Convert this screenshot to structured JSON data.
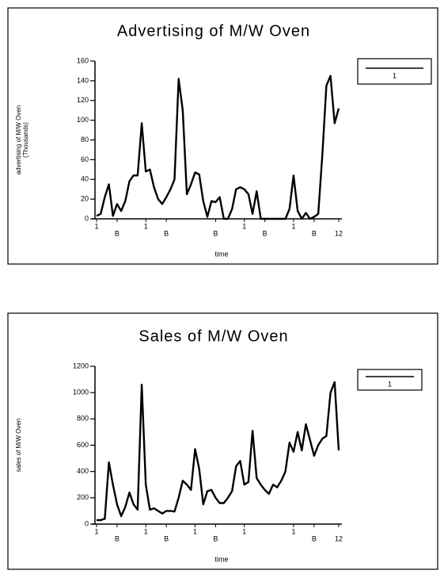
{
  "chart_data": [
    {
      "type": "line",
      "title": "Advertising of M/W Oven",
      "xlabel": "time",
      "ylabel": "advertising of M/W Oven",
      "ylabel2": "(Thousands)",
      "x": [
        1,
        2,
        3,
        4,
        5,
        6,
        7,
        8,
        9,
        10,
        11,
        12,
        13,
        14,
        15,
        16,
        17,
        18,
        19,
        20,
        21,
        22,
        23,
        24,
        25,
        26,
        27,
        28,
        29,
        30,
        31,
        32,
        33,
        34,
        35,
        36,
        37,
        38,
        39,
        40,
        41,
        42,
        43,
        44,
        45,
        46,
        47,
        48,
        49,
        50,
        51,
        52,
        53,
        54,
        55,
        56,
        57,
        58,
        59,
        60
      ],
      "series": [
        {
          "name": "1",
          "color": "#000000",
          "values": [
            3,
            5,
            22,
            35,
            3,
            15,
            8,
            18,
            38,
            44,
            44,
            97,
            48,
            50,
            32,
            20,
            15,
            22,
            30,
            40,
            142,
            110,
            25,
            35,
            47,
            45,
            18,
            2,
            18,
            17,
            22,
            0,
            0,
            10,
            30,
            32,
            30,
            25,
            5,
            28,
            0,
            0,
            0,
            0,
            0,
            0,
            0,
            10,
            44,
            8,
            0,
            6,
            0,
            2,
            5,
            65,
            135,
            145,
            97,
            112
          ]
        }
      ],
      "xlim": [
        1,
        60
      ],
      "ylim": [
        0,
        160
      ],
      "yticks": [
        0,
        20,
        40,
        60,
        80,
        100,
        120,
        140,
        160
      ],
      "xticks": [
        1,
        {
          "value": 6,
          "label": "B"
        },
        {
          "value": 13,
          "label": "1"
        },
        {
          "value": 18,
          "label": "B"
        },
        {
          "value": 30,
          "label": "B"
        },
        {
          "value": 37,
          "label": "1"
        },
        {
          "value": 42,
          "label": "B"
        },
        {
          "value": 49,
          "label": "1"
        },
        {
          "value": 54,
          "label": "B"
        },
        {
          "value": 60,
          "label": "12"
        }
      ],
      "legend": "upper right"
    },
    {
      "type": "line",
      "title": "Sales of M/W Oven",
      "xlabel": "time",
      "ylabel": "sales of M/W Oven",
      "x": [
        1,
        2,
        3,
        4,
        5,
        6,
        7,
        8,
        9,
        10,
        11,
        12,
        13,
        14,
        15,
        16,
        17,
        18,
        19,
        20,
        21,
        22,
        23,
        24,
        25,
        26,
        27,
        28,
        29,
        30,
        31,
        32,
        33,
        34,
        35,
        36,
        37,
        38,
        39,
        40,
        41,
        42,
        43,
        44,
        45,
        46,
        47,
        48,
        49,
        50,
        51,
        52,
        53,
        54,
        55,
        56,
        57,
        58,
        59,
        60
      ],
      "series": [
        {
          "name": "1",
          "color": "#000000",
          "values": [
            30,
            30,
            40,
            470,
            300,
            150,
            60,
            130,
            240,
            150,
            110,
            1060,
            300,
            110,
            120,
            100,
            80,
            100,
            100,
            95,
            200,
            330,
            300,
            260,
            570,
            420,
            150,
            250,
            260,
            200,
            160,
            160,
            200,
            250,
            440,
            480,
            300,
            320,
            710,
            350,
            300,
            260,
            230,
            300,
            280,
            330,
            400,
            620,
            550,
            700,
            560,
            760,
            640,
            520,
            600,
            650,
            670,
            1000,
            1080,
            560
          ]
        }
      ],
      "xlim": [
        1,
        60
      ],
      "ylim": [
        0,
        1200
      ],
      "yticks": [
        0,
        200,
        400,
        600,
        800,
        1000,
        1200
      ],
      "xticks": [
        1,
        {
          "value": 6,
          "label": "B"
        },
        {
          "value": 13,
          "label": "1"
        },
        {
          "value": 18,
          "label": "B"
        },
        {
          "value": 25,
          "label": "1"
        },
        {
          "value": 30,
          "label": "B"
        },
        {
          "value": 37,
          "label": "1"
        },
        {
          "value": 49,
          "label": "1"
        },
        {
          "value": 54,
          "label": "B"
        },
        {
          "value": 60,
          "label": "12"
        }
      ],
      "legend": "upper right"
    }
  ]
}
